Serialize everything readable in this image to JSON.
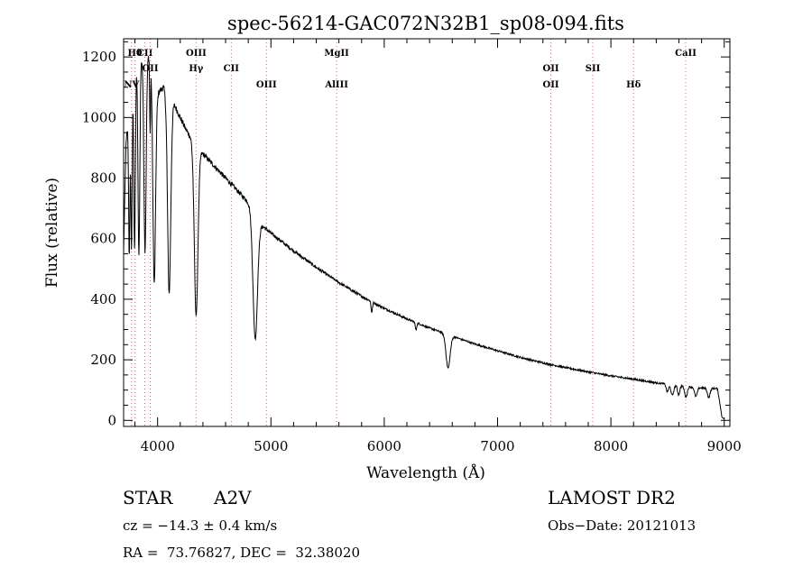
{
  "chart_data": {
    "type": "line",
    "title": "spec-56214-GAC072N32B1_sp08-094.fits",
    "xlabel": "Wavelength (Å)",
    "ylabel": "Flux (relative)",
    "xlim": [
      3700,
      9050
    ],
    "ylim": [
      -20,
      1260
    ],
    "xticks": [
      4000,
      5000,
      6000,
      7000,
      8000,
      9000
    ],
    "yticks": [
      0,
      200,
      400,
      600,
      800,
      1000,
      1200
    ],
    "grid": false,
    "line_color": "#000000",
    "marker_color": "#e06060",
    "continuum": [
      [
        3700,
        560
      ],
      [
        3720,
        900
      ],
      [
        3740,
        1000
      ],
      [
        3760,
        1080
      ],
      [
        3780,
        1150
      ],
      [
        3800,
        1170
      ],
      [
        3830,
        1190
      ],
      [
        3860,
        1200
      ],
      [
        3900,
        1210
      ],
      [
        3940,
        1200
      ],
      [
        3980,
        1110
      ],
      [
        4000,
        1080
      ],
      [
        4050,
        1100
      ],
      [
        4100,
        1060
      ],
      [
        4150,
        1040
      ],
      [
        4200,
        1000
      ],
      [
        4250,
        960
      ],
      [
        4300,
        930
      ],
      [
        4350,
        900
      ],
      [
        4400,
        880
      ],
      [
        4450,
        860
      ],
      [
        4500,
        840
      ],
      [
        4600,
        800
      ],
      [
        4700,
        760
      ],
      [
        4800,
        720
      ],
      [
        4850,
        700
      ],
      [
        4900,
        650
      ],
      [
        5000,
        618
      ],
      [
        5200,
        560
      ],
      [
        5400,
        505
      ],
      [
        5600,
        455
      ],
      [
        5800,
        410
      ],
      [
        6000,
        370
      ],
      [
        6200,
        335
      ],
      [
        6400,
        305
      ],
      [
        6600,
        278
      ],
      [
        6800,
        252
      ],
      [
        7000,
        230
      ],
      [
        7200,
        208
      ],
      [
        7400,
        190
      ],
      [
        7600,
        174
      ],
      [
        7800,
        160
      ],
      [
        8000,
        147
      ],
      [
        8200,
        136
      ],
      [
        8400,
        124
      ],
      [
        8600,
        115
      ],
      [
        8800,
        107
      ],
      [
        8940,
        105
      ],
      [
        8960,
        60
      ],
      [
        8980,
        10
      ],
      [
        9000,
        5
      ]
    ],
    "absorption_lines": [
      {
        "center": 3750,
        "depth": 500,
        "width": 6
      },
      {
        "center": 3770,
        "depth": 550,
        "width": 6
      },
      {
        "center": 3797,
        "depth": 600,
        "width": 7
      },
      {
        "center": 3835,
        "depth": 650,
        "width": 8
      },
      {
        "center": 3889,
        "depth": 650,
        "width": 10
      },
      {
        "center": 3934,
        "depth": 250,
        "width": 4
      },
      {
        "center": 3970,
        "depth": 680,
        "width": 12
      },
      {
        "center": 4102,
        "depth": 640,
        "width": 14
      },
      {
        "center": 4340,
        "depth": 560,
        "width": 16
      },
      {
        "center": 4861,
        "depth": 420,
        "width": 20
      },
      {
        "center": 5890,
        "depth": 35,
        "width": 6
      },
      {
        "center": 6280,
        "depth": 25,
        "width": 6
      },
      {
        "center": 6563,
        "depth": 110,
        "width": 18
      },
      {
        "center": 8498,
        "depth": 25,
        "width": 10
      },
      {
        "center": 8542,
        "depth": 35,
        "width": 12
      },
      {
        "center": 8598,
        "depth": 30,
        "width": 10
      },
      {
        "center": 8662,
        "depth": 35,
        "width": 12
      },
      {
        "center": 8750,
        "depth": 30,
        "width": 12
      },
      {
        "center": 8863,
        "depth": 30,
        "width": 12
      }
    ],
    "line_markers": [
      {
        "x": 3770,
        "label": "NV",
        "row": 3
      },
      {
        "x": 3800,
        "label": "Hθ",
        "row": 1
      },
      {
        "x": 3888,
        "label": "CII",
        "row": 1
      },
      {
        "x": 3935,
        "label": "OII",
        "row": 2
      },
      {
        "x": 4340,
        "label": "OIII",
        "row": 1
      },
      {
        "x": 4340,
        "label": "Hγ",
        "row": 2
      },
      {
        "x": 4650,
        "label": "CII",
        "row": 2
      },
      {
        "x": 4960,
        "label": "OIII",
        "row": 3
      },
      {
        "x": 5580,
        "label": "MgII",
        "row": 1
      },
      {
        "x": 5580,
        "label": "AlIII",
        "row": 3
      },
      {
        "x": 7470,
        "label": "OII",
        "row": 2
      },
      {
        "x": 7470,
        "label": "OII",
        "row": 3
      },
      {
        "x": 7840,
        "label": "SII",
        "row": 2
      },
      {
        "x": 8200,
        "label": "Hδ",
        "row": 3
      },
      {
        "x": 8660,
        "label": "CaII",
        "row": 1
      }
    ]
  },
  "info": {
    "object_class": "STAR",
    "subclass": "A2V",
    "survey": "LAMOST DR2",
    "redshift": "cz = −14.3 ± 0.4 km/s",
    "obs_date": "Obs−Date: 20121013",
    "coords": "RA =  73.76827, DEC =  32.38020"
  }
}
